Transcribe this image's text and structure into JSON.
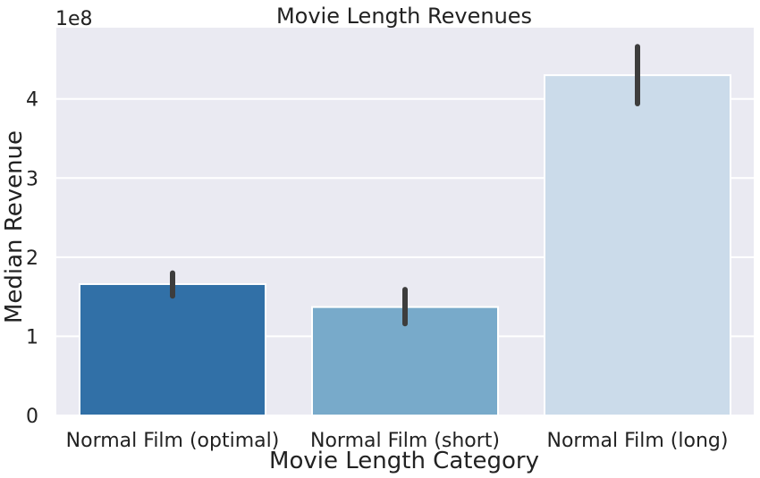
{
  "chart_data": {
    "type": "bar",
    "title": "Movie Length Revenues",
    "xlabel": "Movie Length Category",
    "ylabel": "Median Revenue",
    "y_offset_label": "1e8",
    "categories": [
      "Normal Film (optimal)",
      "Normal Film (short)",
      "Normal Film (long)"
    ],
    "values": [
      166000000,
      137000000,
      430000000
    ],
    "error_bars": [
      {
        "low": 151000000,
        "high": 180000000
      },
      {
        "low": 116000000,
        "high": 159000000
      },
      {
        "low": 394000000,
        "high": 466000000
      }
    ],
    "ylim": [
      0,
      490000000
    ],
    "yticks": [
      0,
      100000000,
      200000000,
      300000000,
      400000000
    ],
    "ytick_labels": [
      "0",
      "1",
      "2",
      "3",
      "4"
    ],
    "grid": true,
    "colors": {
      "plot_background": "#eaeaf2",
      "grid": "#ffffff",
      "bars": [
        "#3170a7",
        "#78aaca",
        "#cbdbea"
      ],
      "bar_edge": "#ffffff",
      "error_bar": "#3d3d3d",
      "text": "#222222"
    }
  }
}
